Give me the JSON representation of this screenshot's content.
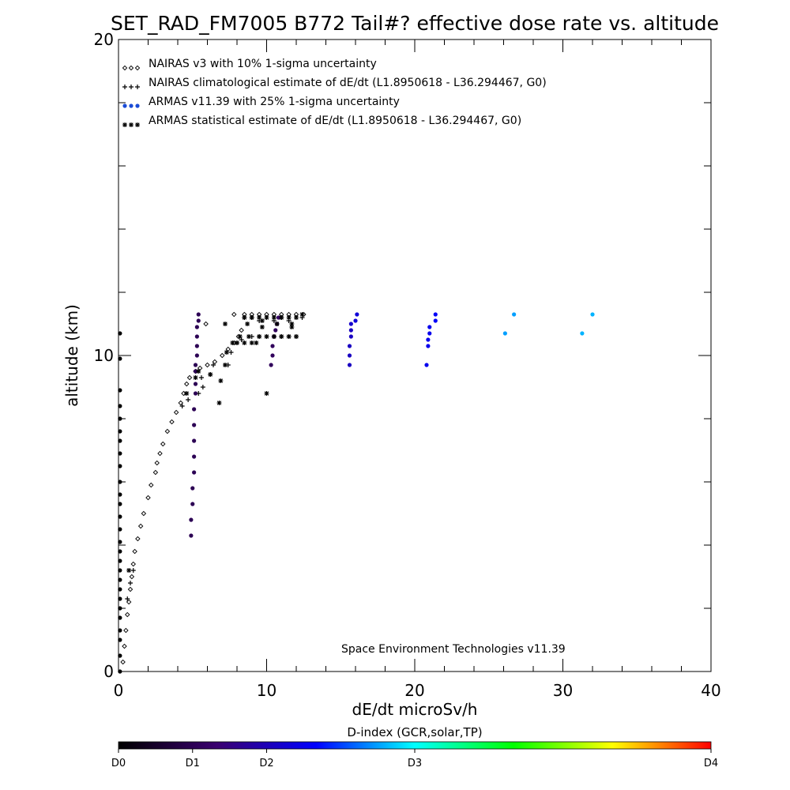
{
  "chart_data": {
    "type": "scatter",
    "title": "SET_RAD_FM7005  B772 Tail#? effective dose rate vs. altitude",
    "xlabel": "dE/dt microSv/h",
    "ylabel": "altitude (km)",
    "xlim": [
      0,
      40
    ],
    "ylim": [
      0,
      20
    ],
    "x_ticks": [
      "0",
      "10",
      "20",
      "30",
      "40"
    ],
    "y_ticks": [
      "0",
      "10",
      "20"
    ],
    "legend_position": "top-left",
    "annotation": "Space Environment Technologies v11.39",
    "colorbar": {
      "title": "D-index (GCR,solar,TP)",
      "labels": [
        "D0",
        "D1",
        "D2",
        "D3",
        "D4"
      ],
      "positions": [
        0,
        1,
        2,
        4,
        8
      ],
      "max": 8,
      "stops": [
        "#000000",
        "#3b0070",
        "#0000ff",
        "#00ffff",
        "#00ff00",
        "#ffff00",
        "#ff0000"
      ]
    },
    "series": [
      {
        "name": "NAIRAS v3 with 10% 1-sigma uncertainty",
        "marker": "diamond",
        "color": "#000000",
        "points": [
          [
            0.3,
            0.3
          ],
          [
            0.4,
            0.8
          ],
          [
            0.5,
            1.3
          ],
          [
            0.6,
            1.8
          ],
          [
            0.7,
            2.2
          ],
          [
            0.8,
            2.6
          ],
          [
            0.9,
            3.0
          ],
          [
            1.0,
            3.4
          ],
          [
            1.1,
            3.8
          ],
          [
            1.3,
            4.2
          ],
          [
            1.5,
            4.6
          ],
          [
            1.7,
            5.0
          ],
          [
            2.0,
            5.5
          ],
          [
            2.2,
            5.9
          ],
          [
            2.5,
            6.3
          ],
          [
            2.6,
            6.6
          ],
          [
            2.8,
            6.9
          ],
          [
            3.0,
            7.2
          ],
          [
            3.3,
            7.6
          ],
          [
            3.6,
            7.9
          ],
          [
            3.9,
            8.2
          ],
          [
            4.2,
            8.5
          ],
          [
            4.4,
            8.8
          ],
          [
            4.6,
            9.1
          ],
          [
            4.8,
            9.3
          ],
          [
            5.2,
            9.5
          ],
          [
            5.5,
            9.6
          ],
          [
            6.0,
            9.7
          ],
          [
            6.5,
            9.8
          ],
          [
            7.0,
            10.0
          ],
          [
            7.4,
            10.2
          ],
          [
            7.8,
            10.4
          ],
          [
            8.1,
            10.6
          ],
          [
            8.3,
            10.8
          ],
          [
            5.9,
            11.0
          ],
          [
            7.8,
            11.3
          ],
          [
            8.5,
            11.3
          ],
          [
            9.0,
            11.3
          ],
          [
            9.5,
            11.3
          ],
          [
            10.0,
            11.3
          ],
          [
            10.5,
            11.3
          ],
          [
            11.0,
            11.3
          ],
          [
            11.5,
            11.3
          ],
          [
            12.0,
            11.3
          ],
          [
            12.5,
            11.3
          ]
        ]
      },
      {
        "name": "NAIRAS climatological estimate of dE/dt (L1.8950618 - L36.294467, G0)",
        "marker": "plus",
        "color": "#000000",
        "points": [
          [
            0.6,
            2.3
          ],
          [
            0.8,
            2.8
          ],
          [
            1.0,
            3.2
          ],
          [
            4.3,
            8.4
          ],
          [
            4.7,
            8.6
          ],
          [
            5.4,
            8.8
          ],
          [
            5.7,
            9.0
          ],
          [
            5.6,
            9.3
          ],
          [
            6.2,
            9.4
          ],
          [
            6.4,
            9.7
          ],
          [
            7.4,
            9.7
          ],
          [
            7.6,
            10.1
          ],
          [
            8.0,
            10.4
          ],
          [
            8.3,
            10.5
          ],
          [
            9.0,
            10.6
          ],
          [
            9.5,
            10.6
          ],
          [
            10.0,
            10.6
          ],
          [
            10.5,
            10.6
          ],
          [
            11.0,
            10.6
          ],
          [
            11.5,
            10.6
          ],
          [
            12.0,
            10.6
          ],
          [
            8.5,
            11.2
          ],
          [
            9.5,
            11.1
          ],
          [
            10.5,
            11.1
          ],
          [
            11.5,
            11.1
          ],
          [
            12.4,
            11.2
          ],
          [
            11.0,
            11.2
          ],
          [
            9.0,
            11.2
          ]
        ]
      },
      {
        "name": "ARMAS v11.39 with 25% 1-sigma uncertainty",
        "marker": "dot",
        "color": "#1a4bd6",
        "points": [
          [
            4.9,
            4.3
          ],
          [
            4.9,
            4.8
          ],
          [
            5.0,
            5.3
          ],
          [
            5.0,
            5.8
          ],
          [
            5.1,
            6.3
          ],
          [
            5.1,
            6.8
          ],
          [
            5.1,
            7.3
          ],
          [
            5.1,
            7.8
          ],
          [
            5.1,
            8.3
          ],
          [
            5.2,
            8.8
          ],
          [
            5.2,
            9.1
          ],
          [
            5.2,
            9.5
          ],
          [
            5.2,
            9.7
          ],
          [
            5.3,
            10.0
          ],
          [
            5.3,
            10.3
          ],
          [
            5.3,
            10.6
          ],
          [
            5.3,
            10.9
          ],
          [
            5.4,
            11.1
          ],
          [
            5.4,
            11.3
          ],
          [
            10.3,
            9.7
          ],
          [
            10.4,
            10.0
          ],
          [
            10.4,
            10.3
          ],
          [
            10.5,
            10.6
          ],
          [
            10.6,
            10.8
          ],
          [
            10.7,
            11.0
          ],
          [
            10.8,
            11.2
          ],
          [
            15.6,
            9.7
          ],
          [
            15.6,
            10.0
          ],
          [
            15.6,
            10.3
          ],
          [
            15.7,
            10.6
          ],
          [
            15.7,
            10.8
          ],
          [
            15.7,
            11.0
          ],
          [
            16.0,
            11.1
          ],
          [
            16.1,
            11.3
          ],
          [
            20.8,
            9.7
          ],
          [
            20.9,
            10.3
          ],
          [
            20.9,
            10.5
          ],
          [
            21.0,
            10.7
          ],
          [
            21.0,
            10.9
          ],
          [
            21.4,
            11.1
          ],
          [
            21.4,
            11.3
          ],
          [
            26.1,
            10.7
          ],
          [
            26.7,
            11.3
          ],
          [
            31.3,
            10.7
          ],
          [
            32.0,
            11.3
          ]
        ]
      },
      {
        "name": "ARMAS statistical estimate of dE/dt (L1.8950618 - L36.294467, G0)",
        "marker": "asterisk",
        "color": "#000000",
        "points": [
          [
            0.7,
            3.2
          ],
          [
            4.6,
            8.8
          ],
          [
            5.2,
            9.3
          ],
          [
            5.4,
            9.5
          ],
          [
            6.2,
            9.4
          ],
          [
            6.9,
            9.2
          ],
          [
            7.2,
            9.7
          ],
          [
            6.8,
            8.5
          ],
          [
            7.3,
            10.1
          ],
          [
            7.7,
            10.4
          ],
          [
            8.0,
            10.4
          ],
          [
            8.5,
            10.4
          ],
          [
            9.0,
            10.4
          ],
          [
            9.3,
            10.4
          ],
          [
            8.2,
            10.6
          ],
          [
            8.8,
            10.6
          ],
          [
            9.5,
            10.6
          ],
          [
            10.0,
            10.6
          ],
          [
            10.5,
            10.6
          ],
          [
            11.0,
            10.6
          ],
          [
            11.5,
            10.6
          ],
          [
            12.0,
            10.6
          ],
          [
            9.7,
            10.9
          ],
          [
            9.7,
            11.1
          ],
          [
            8.7,
            11.0
          ],
          [
            10.7,
            11.0
          ],
          [
            11.7,
            11.0
          ],
          [
            7.2,
            11.0
          ],
          [
            10.0,
            8.8
          ],
          [
            11.7,
            10.9
          ],
          [
            8.5,
            11.2
          ],
          [
            9.0,
            11.2
          ],
          [
            9.5,
            11.2
          ],
          [
            10.0,
            11.2
          ],
          [
            10.5,
            11.2
          ],
          [
            11.0,
            11.2
          ],
          [
            11.5,
            11.2
          ],
          [
            12.0,
            11.2
          ],
          [
            12.4,
            11.3
          ]
        ]
      },
      {
        "name": "",
        "marker": "dot",
        "color": "#000000",
        "points": [
          [
            0.1,
            0.0
          ],
          [
            0.1,
            0.5
          ],
          [
            0.1,
            1.0
          ],
          [
            0.1,
            1.3
          ],
          [
            0.1,
            1.7
          ],
          [
            0.1,
            2.0
          ],
          [
            0.1,
            2.3
          ],
          [
            0.1,
            2.6
          ],
          [
            0.1,
            2.9
          ],
          [
            0.1,
            3.2
          ],
          [
            0.1,
            3.5
          ],
          [
            0.1,
            3.8
          ],
          [
            0.1,
            4.1
          ],
          [
            0.1,
            4.5
          ],
          [
            0.1,
            4.9
          ],
          [
            0.1,
            5.3
          ],
          [
            0.1,
            5.6
          ],
          [
            0.1,
            6.0
          ],
          [
            0.1,
            6.5
          ],
          [
            0.1,
            6.9
          ],
          [
            0.1,
            7.3
          ],
          [
            0.1,
            7.6
          ],
          [
            0.1,
            8.0
          ],
          [
            0.1,
            8.4
          ],
          [
            0.1,
            8.9
          ],
          [
            0.1,
            9.9
          ],
          [
            0.1,
            10.7
          ]
        ]
      }
    ],
    "point_dindex": [
      [],
      [],
      [
        1,
        1,
        1,
        1,
        1,
        1,
        1,
        1,
        1,
        1,
        1,
        1,
        1,
        1,
        1,
        1,
        1,
        1,
        1,
        1.1,
        1.1,
        1.1,
        1.1,
        1.1,
        1.2,
        1.2,
        2.1,
        2.1,
        2.1,
        2.1,
        2.1,
        2.2,
        2.3,
        2.3,
        2.5,
        2.5,
        2.5,
        2.5,
        2.5,
        2.6,
        2.6,
        3.5,
        3.5,
        3.6,
        3.6
      ],
      [],
      []
    ]
  }
}
